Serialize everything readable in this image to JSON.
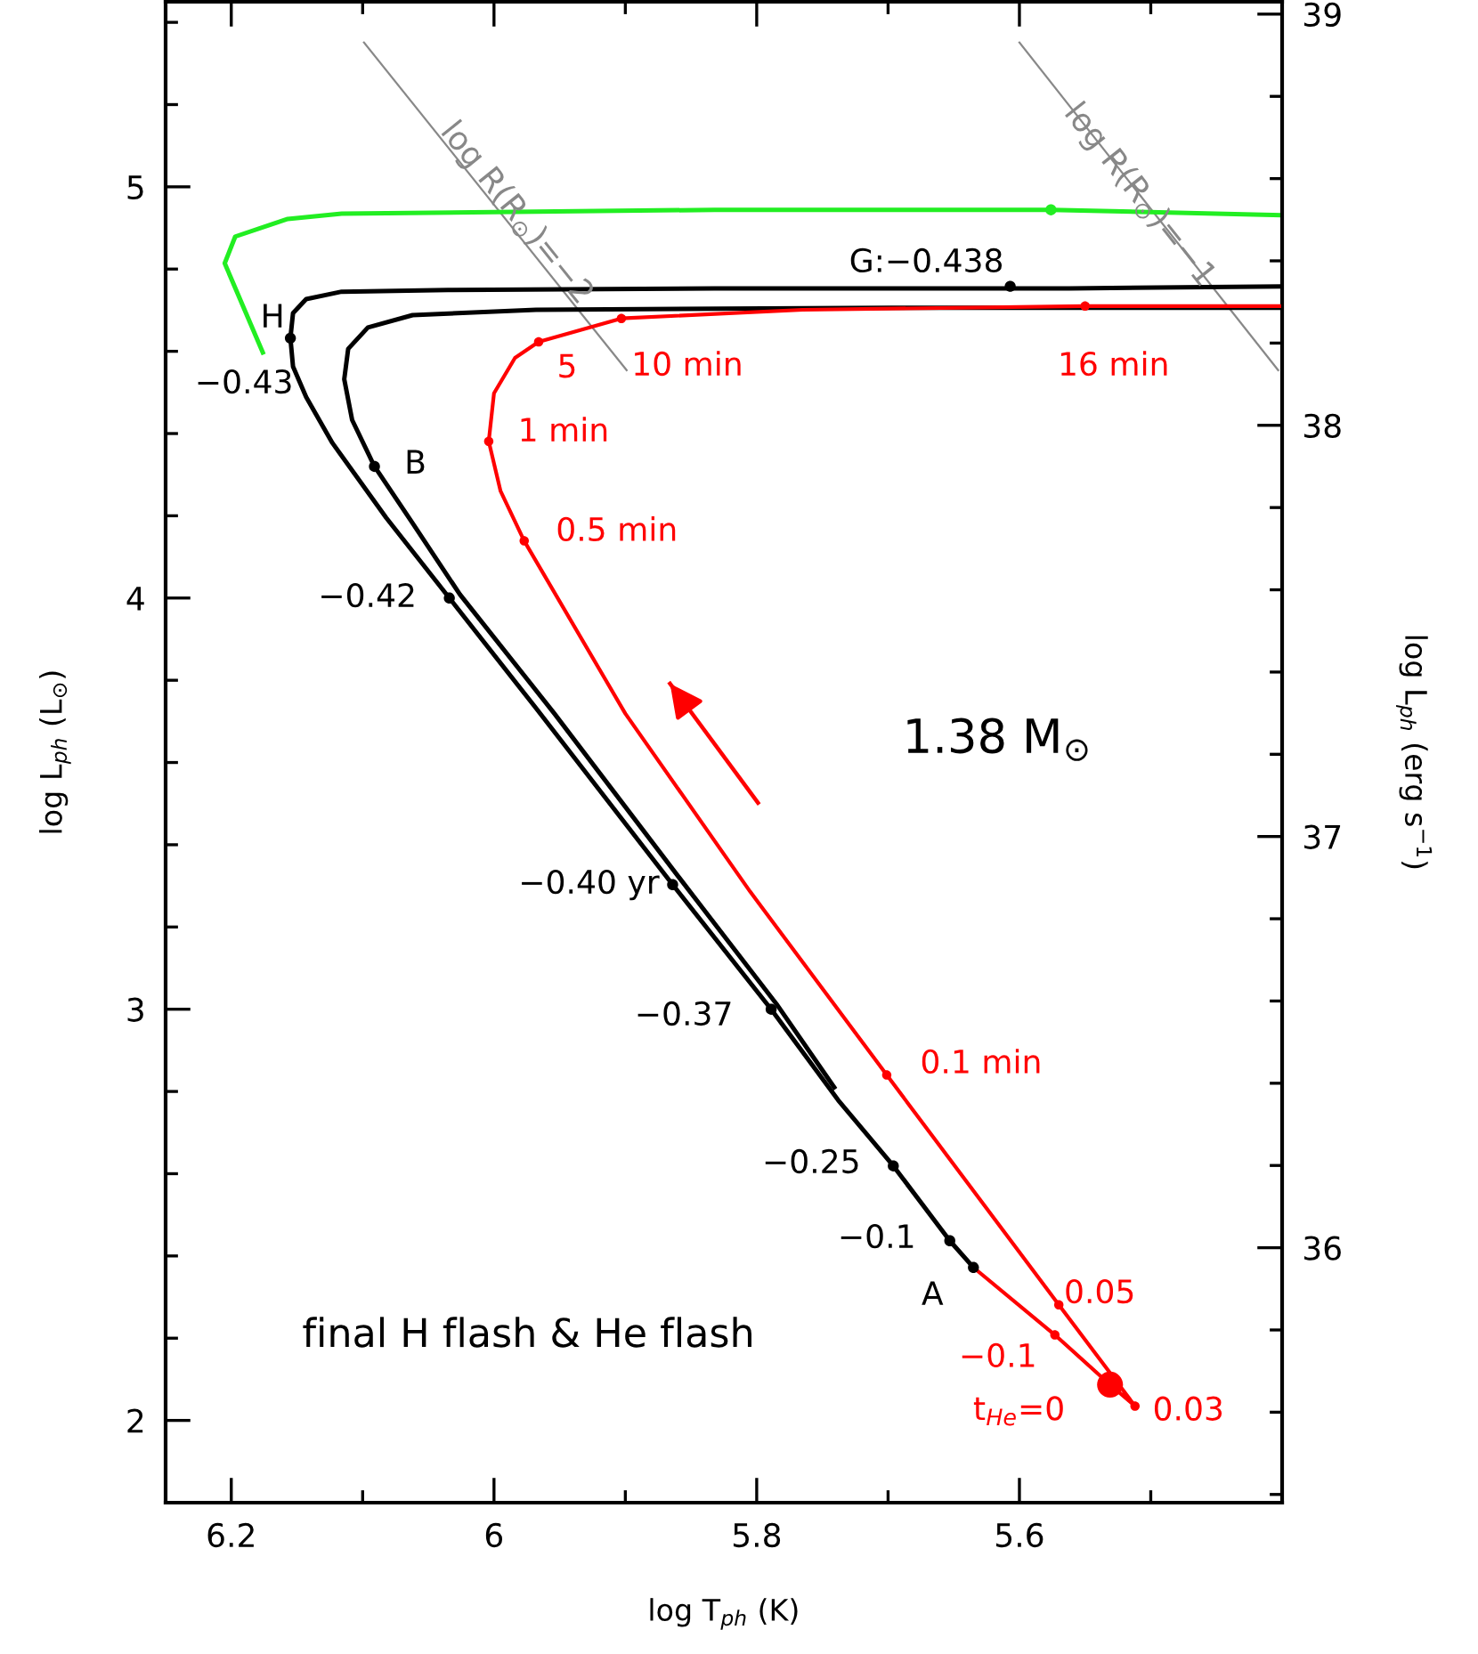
{
  "chart_data": {
    "type": "line",
    "xlabel": "log T$_{ph}$ (K)",
    "ylabel": "log L$_{ph}$ (L$_{⊙}$)",
    "y2label": "log L$_{ph}$ (erg s$^{−1}$)",
    "xlim": [
      6.25,
      5.4
    ],
    "ylim": [
      1.8,
      5.45
    ],
    "y2lim": [
      35.38,
      39.03
    ],
    "xticks": [
      6.2,
      {
        "value": 6.1,
        "label": null
      },
      6,
      {
        "value": 5.9,
        "label": null
      },
      5.8,
      {
        "value": 5.7,
        "label": null
      },
      5.6,
      {
        "value": 5.5,
        "label": null
      }
    ],
    "yticks": [
      {
        "value": 1.8,
        "label": null
      },
      2,
      {
        "value": 2.2,
        "label": null
      },
      {
        "value": 2.4,
        "label": null
      },
      {
        "value": 2.6,
        "label": null
      },
      {
        "value": 2.8,
        "label": null
      },
      3,
      {
        "value": 3.2,
        "label": null
      },
      {
        "value": 3.4,
        "label": null
      },
      {
        "value": 3.6,
        "label": null
      },
      {
        "value": 3.8,
        "label": null
      },
      4,
      {
        "value": 4.2,
        "label": null
      },
      {
        "value": 4.4,
        "label": null
      },
      {
        "value": 4.6,
        "label": null
      },
      {
        "value": 4.8,
        "label": null
      },
      5,
      {
        "value": 5.2,
        "label": null
      },
      {
        "value": 5.4,
        "label": null
      }
    ],
    "y2ticks": [
      {
        "value": 35.4,
        "label": null
      },
      {
        "value": 35.6,
        "label": null
      },
      {
        "value": 35.8,
        "label": null
      },
      36,
      {
        "value": 36.2,
        "label": null
      },
      {
        "value": 36.4,
        "label": null
      },
      {
        "value": 36.6,
        "label": null
      },
      {
        "value": 36.8,
        "label": null
      },
      37,
      {
        "value": 37.2,
        "label": null
      },
      {
        "value": 37.4,
        "label": null
      },
      {
        "value": 37.6,
        "label": null
      },
      {
        "value": 37.8,
        "label": null
      },
      38,
      {
        "value": 38.2,
        "label": null
      },
      {
        "value": 38.4,
        "label": null
      },
      {
        "value": 38.6,
        "label": null
      },
      {
        "value": 38.8,
        "label": null
      },
      39
    ],
    "series": [
      {
        "color": "#888888",
        "x": [
          6.099,
          5.899
        ],
        "values": [
          5.351,
          4.554
        ]
      },
      {
        "color": "#888888",
        "x": [
          5.6,
          5.403
        ],
        "values": [
          5.351,
          4.554
        ]
      },
      {
        "color": "#22ee22",
        "x": [
          6.176,
          6.205,
          6.197,
          6.157,
          6.116,
          5.832,
          5.576,
          5.4
        ],
        "values": [
          4.597,
          4.814,
          4.879,
          4.922,
          4.935,
          4.944,
          4.944,
          4.931
        ]
      },
      {
        "type": "scatter",
        "color": "#22ee22",
        "marker": "circle",
        "x": [
          5.576
        ],
        "values": [
          4.944
        ]
      },
      {
        "color": "#000000",
        "x": [
          5.4,
          5.697,
          5.968,
          6.062,
          6.096,
          6.111,
          6.114,
          6.108,
          6.091,
          6.062,
          6.026,
          5.954,
          5.859,
          5.785,
          5.741
        ],
        "values": [
          4.706,
          4.706,
          4.701,
          4.688,
          4.658,
          4.606,
          4.532,
          4.433,
          4.32,
          4.182,
          4.009,
          3.719,
          3.32,
          3.013,
          2.81
        ]
      },
      {
        "color": "#000000",
        "x": [
          5.4,
          5.562,
          5.832,
          6.035,
          6.116,
          6.143,
          6.153,
          6.155,
          6.153,
          6.143,
          6.123,
          6.082,
          6.034,
          5.968,
          5.864,
          5.789,
          5.738,
          5.696,
          5.653,
          5.635
        ],
        "values": [
          4.758,
          4.753,
          4.753,
          4.749,
          4.745,
          4.727,
          4.693,
          4.632,
          4.563,
          4.489,
          4.377,
          4.195,
          4.0,
          3.732,
          3.303,
          3.0,
          2.779,
          2.619,
          2.437,
          2.372
        ]
      },
      {
        "color": "#ff0000",
        "x": [
          5.635,
          5.573,
          5.531,
          5.512,
          5.57,
          5.701,
          5.805,
          5.9,
          5.977,
          5.995,
          6.004,
          6.0,
          5.984,
          5.966,
          5.903,
          5.765,
          5.55,
          5.4
        ],
        "values": [
          2.372,
          2.208,
          2.087,
          2.035,
          2.281,
          2.84,
          3.286,
          3.719,
          4.139,
          4.26,
          4.381,
          4.498,
          4.584,
          4.623,
          4.68,
          4.701,
          4.71,
          4.71
        ]
      },
      {
        "color": "#ff0000",
        "x": [
          5.799,
          5.866
        ],
        "values": [
          3.502,
          3.792
        ]
      },
      {
        "type": "scatter",
        "color": "#000000",
        "marker": "circle",
        "x": [
          6.155,
          6.091,
          6.034,
          5.864,
          5.789,
          5.696,
          5.653,
          5.635,
          5.607
        ],
        "values": [
          4.632,
          4.32,
          4.0,
          3.303,
          3.0,
          2.619,
          2.437,
          2.372,
          4.758
        ]
      },
      {
        "type": "bubble",
        "color": "#ff0000",
        "marker": "circle",
        "x": [
          5.573,
          5.531,
          5.512,
          5.57,
          5.701,
          5.977,
          6.004,
          5.966,
          5.903,
          5.55
        ],
        "values": [
          2.208,
          2.087,
          2.035,
          2.281,
          2.84,
          4.139,
          4.381,
          4.623,
          4.68,
          4.71
        ],
        "sizes": [
          0.13,
          1,
          0.13,
          0.13,
          0.13,
          0.13,
          0.13,
          0.13,
          0.13,
          0.13
        ]
      }
    ],
    "annotations": [
      "1.38 M$_{⊙}$",
      "final H flash & He flash",
      "log R(R$_{⊙}$)=−2",
      "log R(R$_{⊙}$)=−1",
      {
        "text": "H",
        "x": 6.155,
        "y": 4.632
      },
      {
        "text": "−0.43",
        "x": 6.155,
        "y": 4.632
      },
      {
        "text": "B",
        "x": 6.091,
        "y": 4.32
      },
      {
        "text": "−0.42",
        "x": 6.034,
        "y": 4.0
      },
      {
        "text": "G:−0.438",
        "x": 5.607,
        "y": 4.758
      },
      {
        "text": "−0.40 yr",
        "x": 5.864,
        "y": 3.303
      },
      {
        "text": "−0.37",
        "x": 5.789,
        "y": 3.0
      },
      {
        "text": "−0.25",
        "x": 5.696,
        "y": 2.619
      },
      {
        "text": "−0.1",
        "x": 5.653,
        "y": 2.437
      },
      {
        "text": "A",
        "x": 5.635,
        "y": 2.372
      },
      {
        "text": "−0.1",
        "x": 5.573,
        "y": 2.208
      },
      {
        "text": "t$_{He}$=0",
        "x": 5.531,
        "y": 2.087
      },
      {
        "text": "0.03",
        "x": 5.512,
        "y": 2.035
      },
      {
        "text": "0.05",
        "x": 5.57,
        "y": 2.281
      },
      {
        "text": "0.1 min",
        "x": 5.701,
        "y": 2.84
      },
      {
        "text": "0.5 min",
        "x": 5.977,
        "y": 4.139
      },
      {
        "text": "1 min",
        "x": 6.004,
        "y": 4.381
      },
      {
        "text": "5",
        "x": 5.966,
        "y": 4.623
      },
      {
        "text": "10 min",
        "x": 5.903,
        "y": 4.68
      },
      {
        "text": "16 min",
        "x": 5.55,
        "y": 4.71
      }
    ]
  }
}
